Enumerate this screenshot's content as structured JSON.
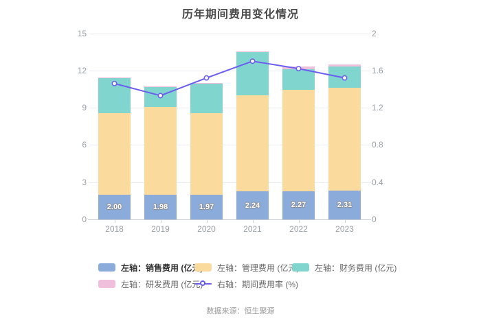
{
  "title": "历年期间费用变化情况",
  "source": "数据来源：恒生聚源",
  "chart_data": {
    "type": "bar",
    "title": "历年期间费用变化情况",
    "categories": [
      "2018",
      "2019",
      "2020",
      "2021",
      "2022",
      "2023"
    ],
    "left_axis": {
      "label": "亿元",
      "min": 0,
      "max": 15,
      "ticks": [
        "0",
        "3",
        "6",
        "9",
        "12",
        "15"
      ]
    },
    "right_axis": {
      "label": "%",
      "min": 0,
      "max": 2,
      "ticks": [
        "0",
        "0.4",
        "0.8",
        "1.2",
        "1.6",
        "2"
      ]
    },
    "grid": true,
    "legend_position": "bottom",
    "legend_rows": [
      [
        0,
        1,
        2
      ],
      [
        3,
        4
      ]
    ],
    "series": [
      {
        "name": "左轴：销售费用 (亿元)",
        "key": "sales-expense",
        "type": "bar",
        "color": "#8BACDA",
        "values": [
          2.0,
          1.98,
          1.97,
          2.24,
          2.27,
          2.31
        ],
        "labels": [
          "2.00",
          "1.98",
          "1.97",
          "2.24",
          "2.27",
          "2.31"
        ],
        "legend_bold": true
      },
      {
        "name": "左轴：管理费用 (亿元)",
        "key": "management-expense",
        "type": "bar",
        "color": "#FBDA9E",
        "values": [
          6.56,
          7.08,
          6.58,
          7.74,
          8.19,
          8.31
        ]
      },
      {
        "name": "左轴：财务费用 (亿元)",
        "key": "financial-expense",
        "type": "bar",
        "color": "#80D6CF",
        "values": [
          2.8,
          1.6,
          2.41,
          3.49,
          1.65,
          1.68
        ]
      },
      {
        "name": "左轴：研发费用 (亿元)",
        "key": "rd-expense",
        "type": "bar",
        "color": "#F0BFDC",
        "values": [
          0.06,
          0.06,
          0.05,
          0.07,
          0.2,
          0.17
        ]
      },
      {
        "name": "右轴：期间费用率 (%)",
        "key": "expense-ratio",
        "type": "line",
        "axis": "right",
        "color": "#6A5DF0",
        "marker_fill": "#ffffff",
        "values": [
          1.46,
          1.33,
          1.52,
          1.7,
          1.62,
          1.52
        ]
      }
    ]
  }
}
